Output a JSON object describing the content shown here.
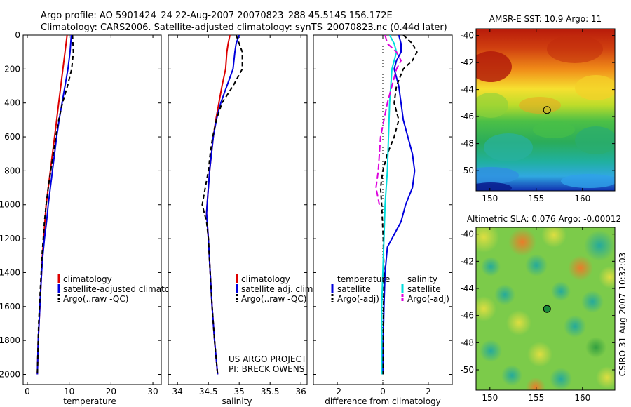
{
  "header": {
    "line1": "Argo profile: AO 5901424_24 22-Aug-2007 20070823_288 45.514S 156.172E",
    "line2": "Climatology: CARS2006. Satellite-adjusted climatology: synTS_20070823.nc (0.44d later)"
  },
  "colors": {
    "climatology": "#dd0000",
    "satellite": "#0000dd",
    "argo": "#000000",
    "salinity_sat": "#00dddd",
    "salinity_argo": "#dd00dd",
    "marker": "#000000"
  },
  "project": {
    "line1": "US ARGO PROJECT",
    "line2": "PI: BRECK OWENS"
  },
  "timestamp": "CSIRO 31-Aug-2007 10:32:03",
  "chart_data": [
    {
      "type": "line",
      "id": "temperature",
      "xlabel": "temperature",
      "xlim": [
        -1,
        32
      ],
      "ylim": [
        2060,
        0
      ],
      "xticks": [
        0,
        10,
        20,
        30
      ],
      "yticks": [
        0,
        200,
        400,
        600,
        800,
        1000,
        1200,
        1400,
        1600,
        1800,
        2000
      ],
      "legend_position": "lower-right",
      "legend": [
        {
          "label": "climatology",
          "color": "#dd0000",
          "dash": "none"
        },
        {
          "label": "satellite-adjusted climatology",
          "color": "#0000dd",
          "dash": "none"
        },
        {
          "label": "Argo(..raw -QC)",
          "color": "#000000",
          "dash": "6,4"
        }
      ],
      "series": [
        {
          "name": "climatology",
          "color": "#dd0000",
          "dash": "none",
          "points": [
            [
              9.5,
              0
            ],
            [
              9.0,
              100
            ],
            [
              8.5,
              200
            ],
            [
              8.0,
              300
            ],
            [
              7.5,
              400
            ],
            [
              7.0,
              500
            ],
            [
              6.5,
              600
            ],
            [
              6.0,
              700
            ],
            [
              5.5,
              800
            ],
            [
              5.0,
              900
            ],
            [
              4.5,
              1000
            ],
            [
              4.2,
              1100
            ],
            [
              3.9,
              1200
            ],
            [
              3.6,
              1300
            ],
            [
              3.4,
              1400
            ],
            [
              3.2,
              1500
            ],
            [
              3.0,
              1600
            ],
            [
              2.8,
              1700
            ],
            [
              2.6,
              1800
            ],
            [
              2.5,
              1900
            ],
            [
              2.4,
              2000
            ]
          ]
        },
        {
          "name": "satellite-adjusted climatology",
          "color": "#0000dd",
          "dash": "none",
          "points": [
            [
              10.5,
              0
            ],
            [
              10.2,
              100
            ],
            [
              9.7,
              200
            ],
            [
              9.0,
              300
            ],
            [
              8.3,
              400
            ],
            [
              7.6,
              500
            ],
            [
              7.0,
              600
            ],
            [
              6.5,
              700
            ],
            [
              6.0,
              800
            ],
            [
              5.5,
              900
            ],
            [
              5.0,
              1000
            ],
            [
              4.6,
              1100
            ],
            [
              4.1,
              1200
            ],
            [
              3.7,
              1300
            ],
            [
              3.4,
              1400
            ],
            [
              3.2,
              1500
            ],
            [
              3.0,
              1600
            ],
            [
              2.8,
              1700
            ],
            [
              2.6,
              1800
            ],
            [
              2.5,
              1900
            ],
            [
              2.4,
              2000
            ]
          ]
        },
        {
          "name": "Argo(..raw -QC)",
          "color": "#000000",
          "dash": "6,4",
          "points": [
            [
              10.8,
              0
            ],
            [
              11.0,
              100
            ],
            [
              10.6,
              200
            ],
            [
              9.6,
              300
            ],
            [
              8.4,
              400
            ],
            [
              7.5,
              500
            ],
            [
              6.8,
              600
            ],
            [
              6.2,
              700
            ],
            [
              5.6,
              800
            ],
            [
              5.0,
              900
            ],
            [
              4.5,
              1000
            ],
            [
              4.1,
              1100
            ],
            [
              3.8,
              1200
            ],
            [
              3.5,
              1300
            ],
            [
              3.3,
              1400
            ],
            [
              3.1,
              1500
            ],
            [
              2.9,
              1600
            ],
            [
              2.7,
              1700
            ],
            [
              2.6,
              1800
            ],
            [
              2.5,
              1900
            ],
            [
              2.4,
              2000
            ]
          ]
        }
      ]
    },
    {
      "type": "line",
      "id": "salinity",
      "xlabel": "salinity",
      "xlim": [
        33.85,
        36.1
      ],
      "ylim": [
        2060,
        0
      ],
      "xticks": [
        34,
        34.5,
        35,
        35.5,
        36
      ],
      "legend_position": "lower-right",
      "legend": [
        {
          "label": "climatology",
          "color": "#dd0000",
          "dash": "none"
        },
        {
          "label": "satellite adj. clim.",
          "color": "#0000dd",
          "dash": "none"
        },
        {
          "label": "Argo(..raw -QC)",
          "color": "#000000",
          "dash": "6,4"
        }
      ],
      "series": [
        {
          "name": "climatology",
          "color": "#dd0000",
          "dash": "none",
          "points": [
            [
              34.85,
              0
            ],
            [
              34.82,
              50
            ],
            [
              34.8,
              100
            ],
            [
              34.78,
              200
            ],
            [
              34.72,
              300
            ],
            [
              34.67,
              400
            ],
            [
              34.62,
              500
            ],
            [
              34.58,
              600
            ],
            [
              34.55,
              700
            ],
            [
              34.52,
              800
            ],
            [
              34.5,
              900
            ],
            [
              34.48,
              1000
            ],
            [
              34.47,
              1050
            ],
            [
              34.5,
              1200
            ],
            [
              34.53,
              1400
            ],
            [
              34.56,
              1600
            ],
            [
              34.6,
              1800
            ],
            [
              34.65,
              2000
            ]
          ]
        },
        {
          "name": "satellite adj. clim.",
          "color": "#0000dd",
          "dash": "none",
          "points": [
            [
              35.0,
              0
            ],
            [
              34.95,
              50
            ],
            [
              34.93,
              100
            ],
            [
              34.9,
              200
            ],
            [
              34.8,
              300
            ],
            [
              34.7,
              400
            ],
            [
              34.63,
              500
            ],
            [
              34.58,
              600
            ],
            [
              34.55,
              700
            ],
            [
              34.52,
              800
            ],
            [
              34.5,
              900
            ],
            [
              34.48,
              1000
            ],
            [
              34.47,
              1050
            ],
            [
              34.5,
              1200
            ],
            [
              34.53,
              1400
            ],
            [
              34.56,
              1600
            ],
            [
              34.6,
              1800
            ],
            [
              34.65,
              2000
            ]
          ]
        },
        {
          "name": "Argo(..raw -QC)",
          "color": "#000000",
          "dash": "6,4",
          "points": [
            [
              34.95,
              0
            ],
            [
              35.0,
              50
            ],
            [
              35.05,
              100
            ],
            [
              35.05,
              200
            ],
            [
              34.9,
              300
            ],
            [
              34.72,
              400
            ],
            [
              34.63,
              500
            ],
            [
              34.57,
              600
            ],
            [
              34.53,
              700
            ],
            [
              34.5,
              800
            ],
            [
              34.45,
              900
            ],
            [
              34.4,
              1000
            ],
            [
              34.47,
              1100
            ],
            [
              34.5,
              1200
            ],
            [
              34.53,
              1400
            ],
            [
              34.56,
              1600
            ],
            [
              34.6,
              1800
            ],
            [
              34.65,
              2000
            ]
          ]
        }
      ]
    },
    {
      "type": "line",
      "id": "difference",
      "xlabel": "difference from climatology",
      "xlim": [
        -3.05,
        3.05
      ],
      "ylim": [
        2060,
        0
      ],
      "xticks": [
        -2,
        0,
        2
      ],
      "zero_line": true,
      "legend_position": "lower-right",
      "legend_temperature": {
        "title": "temperature",
        "items": [
          {
            "label": "satellite",
            "color": "#0000dd",
            "dash": "none"
          },
          {
            "label": "Argo(-adj)",
            "color": "#000000",
            "dash": "6,4"
          }
        ]
      },
      "legend_salinity": {
        "title": "salinity",
        "items": [
          {
            "label": "satellite",
            "color": "#00dddd",
            "dash": "none"
          },
          {
            "label": "Argo(-adj)",
            "color": "#dd00dd",
            "dash": "9,4"
          }
        ]
      },
      "series": [
        {
          "name": "temperature satellite",
          "color": "#0000dd",
          "dash": "none",
          "points": [
            [
              0.7,
              0
            ],
            [
              0.8,
              50
            ],
            [
              0.8,
              100
            ],
            [
              0.6,
              150
            ],
            [
              0.5,
              200
            ],
            [
              0.7,
              300
            ],
            [
              0.8,
              400
            ],
            [
              0.9,
              500
            ],
            [
              1.1,
              600
            ],
            [
              1.3,
              700
            ],
            [
              1.4,
              800
            ],
            [
              1.3,
              900
            ],
            [
              1.0,
              1000
            ],
            [
              0.8,
              1100
            ],
            [
              0.6,
              1150
            ],
            [
              0.2,
              1250
            ],
            [
              0.1,
              1400
            ],
            [
              0.05,
              1600
            ],
            [
              0.02,
              1800
            ],
            [
              0,
              2000
            ]
          ]
        },
        {
          "name": "temperature Argo(-adj)",
          "color": "#000000",
          "dash": "6,4",
          "points": [
            [
              0.9,
              0
            ],
            [
              1.3,
              50
            ],
            [
              1.5,
              100
            ],
            [
              1.3,
              150
            ],
            [
              0.9,
              200
            ],
            [
              0.6,
              300
            ],
            [
              0.5,
              400
            ],
            [
              0.7,
              500
            ],
            [
              0.5,
              600
            ],
            [
              0.2,
              700
            ],
            [
              0.0,
              800
            ],
            [
              -0.1,
              900
            ],
            [
              -0.05,
              1000
            ],
            [
              0.02,
              1200
            ],
            [
              0.05,
              1400
            ],
            [
              0.03,
              1600
            ],
            [
              0.02,
              1800
            ],
            [
              0,
              2000
            ]
          ]
        },
        {
          "name": "salinity satellite",
          "color": "#00dddd",
          "dash": "none",
          "points": [
            [
              0.3,
              0
            ],
            [
              0.5,
              50
            ],
            [
              0.6,
              100
            ],
            [
              0.4,
              200
            ],
            [
              0.3,
              400
            ],
            [
              0.25,
              600
            ],
            [
              0.2,
              800
            ],
            [
              0.1,
              1000
            ],
            [
              0.05,
              1200
            ],
            [
              0.0,
              1400
            ],
            [
              -0.05,
              1600
            ],
            [
              -0.05,
              1800
            ],
            [
              -0.05,
              2000
            ]
          ]
        },
        {
          "name": "salinity Argo(-adj)",
          "color": "#dd00dd",
          "dash": "9,4",
          "points": [
            [
              0.1,
              0
            ],
            [
              0.2,
              50
            ],
            [
              0.6,
              100
            ],
            [
              0.8,
              150
            ],
            [
              0.6,
              200
            ],
            [
              0.4,
              300
            ],
            [
              0.2,
              400
            ],
            [
              0.05,
              500
            ],
            [
              -0.1,
              600
            ],
            [
              -0.15,
              700
            ],
            [
              -0.2,
              800
            ],
            [
              -0.3,
              900
            ],
            [
              -0.15,
              1000
            ]
          ]
        }
      ]
    }
  ],
  "maps": [
    {
      "id": "sst",
      "title": "AMSR-E SST: 10.9 Argo: 11",
      "xlim": [
        148.5,
        163.5
      ],
      "ylim": [
        -51.5,
        -39.5
      ],
      "xticks": [
        150,
        155,
        160
      ],
      "yticks": [
        -40,
        -42,
        -44,
        -46,
        -48,
        -50
      ],
      "marker": {
        "lon": 156.17,
        "lat": -45.51,
        "fill": "none"
      }
    },
    {
      "id": "sla",
      "title": "Altimetric SLA: 0.076 Argo: -0.00012",
      "xlim": [
        148.5,
        163.5
      ],
      "ylim": [
        -51.5,
        -39.5
      ],
      "xticks": [
        150,
        155,
        160
      ],
      "yticks": [
        -40,
        -42,
        -44,
        -46,
        -48,
        -50
      ],
      "marker": {
        "lon": 156.17,
        "lat": -45.51,
        "fill": "#1a8a3a"
      }
    }
  ]
}
